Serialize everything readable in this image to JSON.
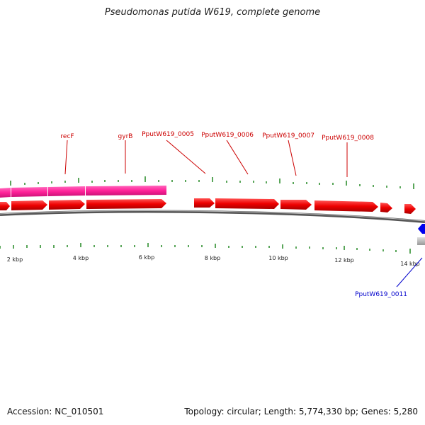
{
  "title": "Pseudomonas putida W619, complete genome",
  "accession": "Accession: NC_010501",
  "summary": "Topology: circular; Length: 5,774,330 bp; Genes: 5,280",
  "kbp_labels": [
    "2 kbp",
    "4 kbp",
    "6 kbp",
    "8 kbp",
    "10 kbp",
    "12 kbp",
    "14 kbp"
  ],
  "gene_labels": {
    "recF": "recF",
    "gyrB": "gyrB",
    "g0005": "PputW619_0005",
    "g0006": "PputW619_0006",
    "g0007": "PputW619_0007",
    "g0008": "PputW619_0008",
    "g0011": "PputW619_0011"
  },
  "colors": {
    "forward_gene": "#ff0000",
    "reverse_gene": "#0000ff",
    "pink_track": "#ff3399",
    "tick": "#228822",
    "backbone": "#888888"
  }
}
